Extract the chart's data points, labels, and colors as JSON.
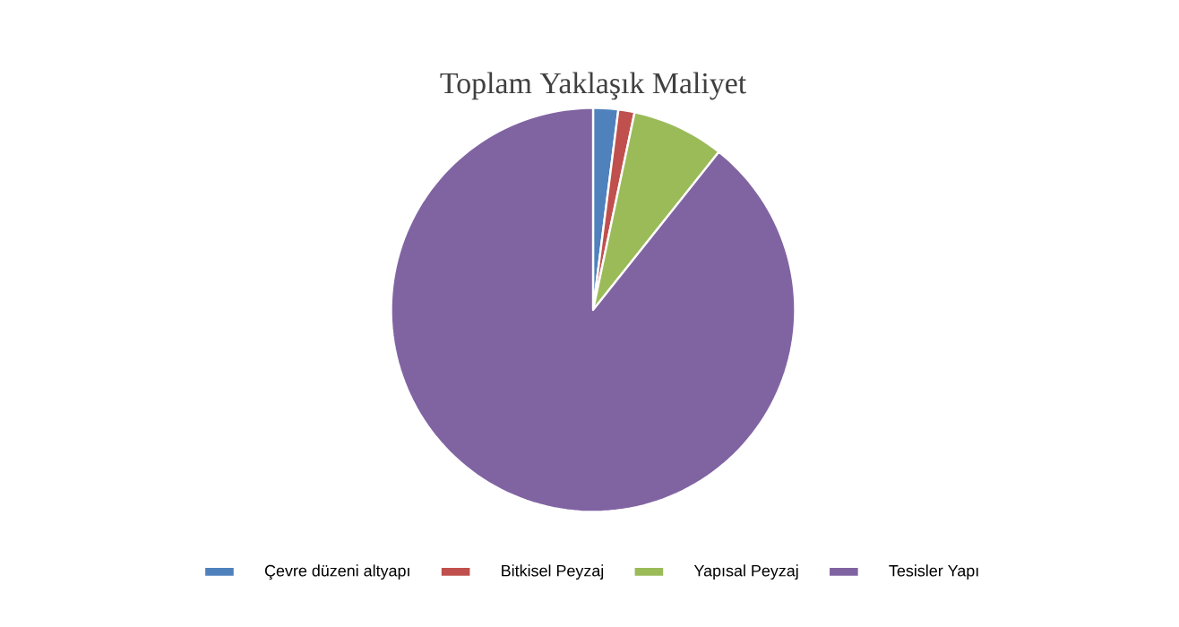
{
  "chart_data": {
    "type": "pie",
    "title": "Toplam Yaklaşık Maliyet",
    "categories": [
      "Çevre düzeni altyapı",
      "Bitkisel Peyzaj",
      "Yapısal Peyzaj",
      "Tesisler Yapı"
    ],
    "values": [
      2,
      1.3,
      7.4,
      89.3
    ],
    "colors": [
      "#4f81bd",
      "#c0504d",
      "#9bbb59",
      "#8064a2"
    ],
    "legend": "bottom"
  }
}
